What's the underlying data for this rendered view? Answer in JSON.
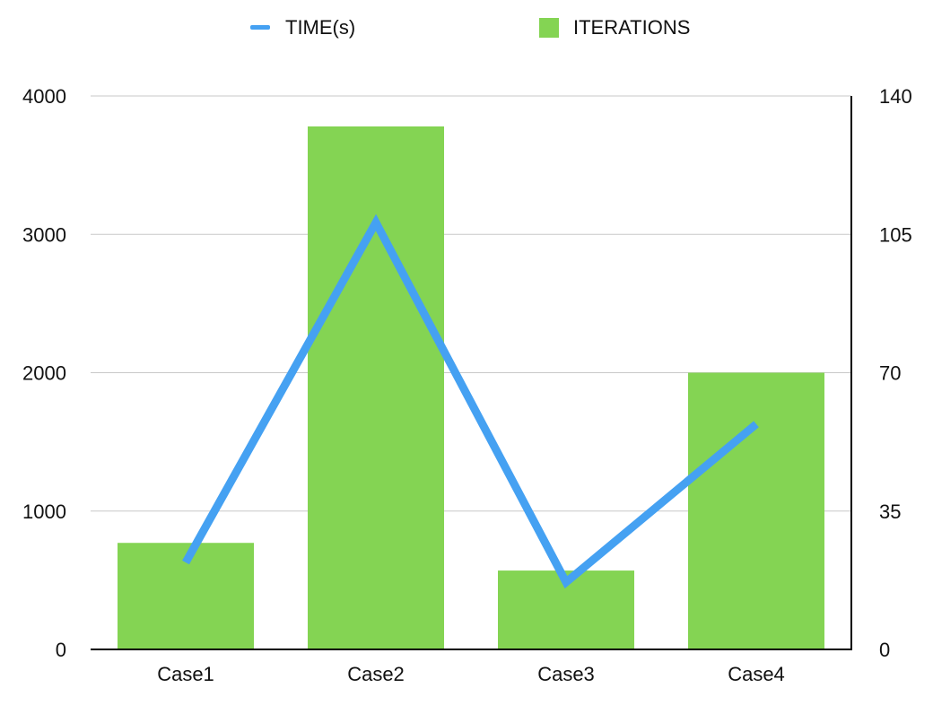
{
  "chart_data": {
    "type": "bar",
    "categories": [
      "Case1",
      "Case2",
      "Case3",
      "Case4"
    ],
    "series": [
      {
        "name": "ITERATIONS",
        "kind": "bar",
        "axis": "left",
        "color": "#84d453",
        "values": [
          770,
          3780,
          570,
          2000
        ]
      },
      {
        "name": "TIME(s)",
        "kind": "line",
        "axis": "right",
        "color": "#45a1f2",
        "values": [
          22,
          108,
          17,
          57
        ]
      }
    ],
    "left_axis": {
      "ylim": [
        0,
        4000
      ],
      "ticks": [
        "0",
        "1000",
        "2000",
        "3000",
        "4000"
      ]
    },
    "right_axis": {
      "ylim": [
        0,
        140
      ],
      "ticks": [
        "0",
        "35",
        "70",
        "105",
        "140"
      ]
    },
    "grid": true,
    "legend": {
      "position": "top-center",
      "entries": [
        "TIME(s)",
        "ITERATIONS"
      ]
    },
    "title": "",
    "xlabel": "",
    "ylabel": ""
  }
}
